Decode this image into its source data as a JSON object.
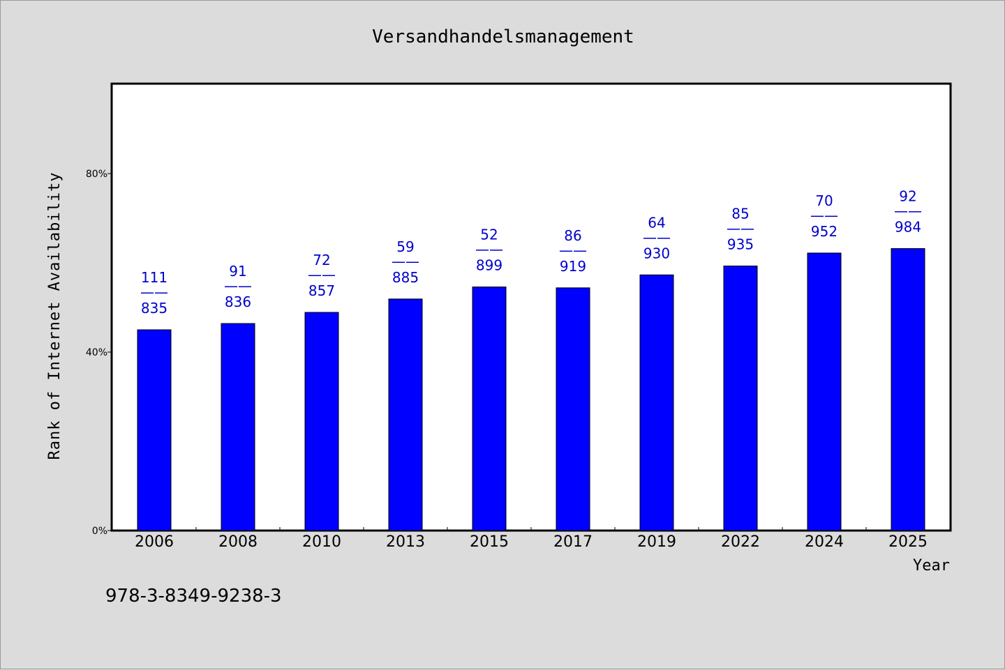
{
  "chart_data": {
    "type": "bar",
    "title": "Versandhandelsmanagement",
    "xlabel": "Year",
    "ylabel": "Rank of Internet Availability",
    "categories": [
      "2006",
      "2008",
      "2010",
      "2013",
      "2015",
      "2017",
      "2019",
      "2022",
      "2024",
      "2025"
    ],
    "values": [
      45.0,
      46.4,
      48.9,
      51.9,
      54.6,
      54.4,
      57.3,
      59.3,
      62.2,
      63.2
    ],
    "label_top": [
      "111",
      "91",
      "72",
      "59",
      "52",
      "86",
      "64",
      "85",
      "70",
      "92"
    ],
    "label_separator": "——",
    "label_bottom": [
      "835",
      "836",
      "857",
      "885",
      "899",
      "919",
      "930",
      "935",
      "952",
      "984"
    ],
    "ylim": [
      0,
      100
    ],
    "yticks": [
      0,
      40,
      80
    ],
    "ytick_labels": [
      "0%",
      "40%",
      "80%"
    ],
    "grid": false,
    "bar_color": "#0000ff",
    "label_color": "#0000cc",
    "background": "#dcdcdc",
    "plot_background": "#ffffff"
  },
  "footer": {
    "isbn": "978-3-8349-9238-3"
  }
}
